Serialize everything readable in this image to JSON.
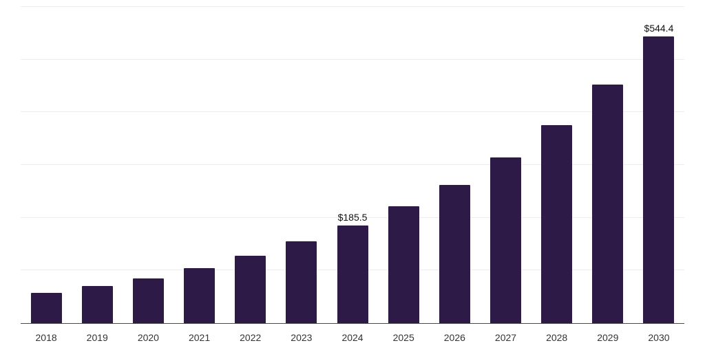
{
  "chart_data": {
    "type": "bar",
    "title": "",
    "xlabel": "",
    "ylabel": "",
    "categories": [
      "2018",
      "2019",
      "2020",
      "2021",
      "2022",
      "2023",
      "2024",
      "2025",
      "2026",
      "2027",
      "2028",
      "2029",
      "2030"
    ],
    "values": [
      58,
      70,
      85,
      105,
      128,
      155,
      185.5,
      222,
      262,
      315,
      376,
      453,
      544.4
    ],
    "data_labels": {
      "2024": "$185.5",
      "2030": "$544.4"
    },
    "ylim": [
      0,
      600
    ],
    "gridline_values": [
      100,
      200,
      300,
      400,
      500,
      600
    ],
    "grid": "horizontal-light",
    "legend": "none",
    "bar_color": "#2e1a47",
    "axis_line_color": "#4a4a4a",
    "gridline_color": "#ededed",
    "label_color": "#111111",
    "tick_label_color": "#333333"
  }
}
